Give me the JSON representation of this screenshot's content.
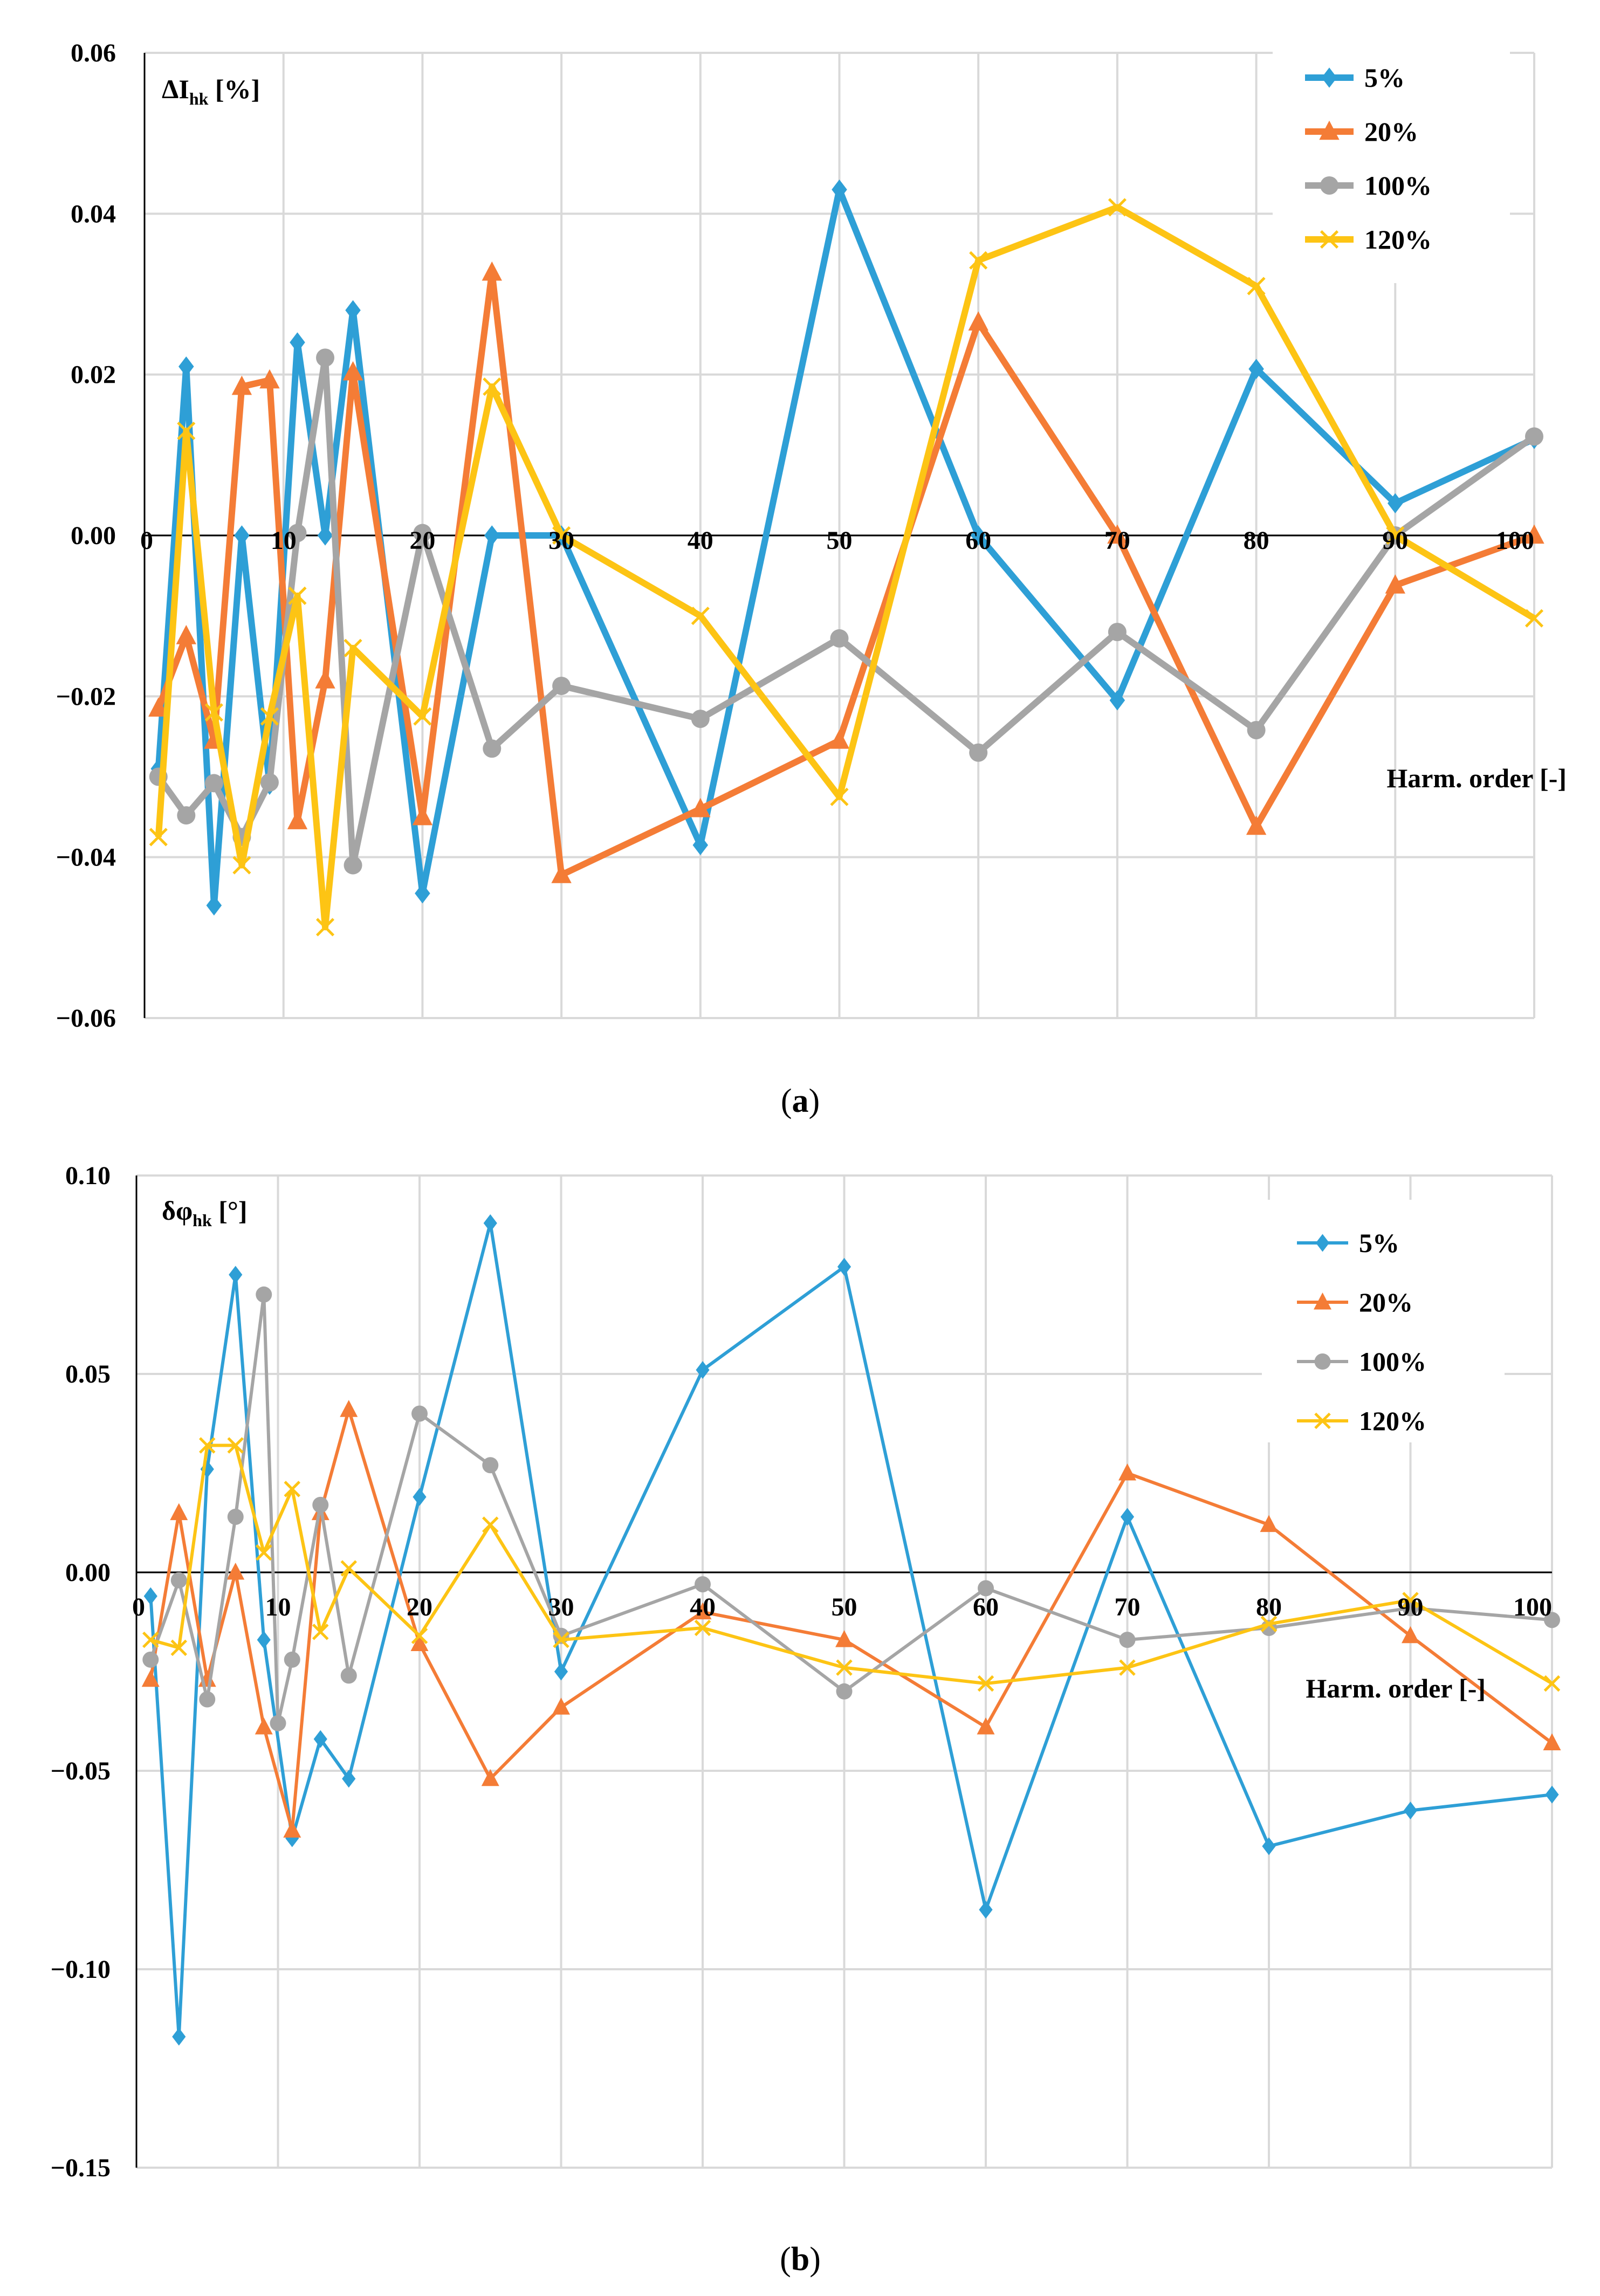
{
  "colors": {
    "5%": "#2e9fd6",
    "20%": "#f47c36",
    "100%": "#a5a5a5",
    "120%": "#fdc414",
    "grid": "#d9d9d9",
    "axis": "#000000"
  },
  "chart_data": [
    {
      "type": "line",
      "caption": {
        "open": "(",
        "letter": "a",
        "close": ")"
      },
      "ylabel": {
        "main": "ΔI",
        "sub": "hk",
        "unit": " [%]"
      },
      "xlabel": "Harm. order [-]",
      "xlim": [
        0,
        100
      ],
      "ylim": [
        -0.06,
        0.06
      ],
      "xticks": [
        "0",
        "10",
        "20",
        "30",
        "40",
        "50",
        "60",
        "70",
        "80",
        "90",
        "100"
      ],
      "yticks": [
        "0.06",
        "0.04",
        "0.02",
        "0.00",
        "−0.02",
        "−0.04",
        "−0.06"
      ],
      "line_style": "thick",
      "series": [
        {
          "name": "5%",
          "marker": "diamond",
          "x": [
            1,
            3,
            5,
            7,
            9,
            11,
            13,
            15,
            20,
            25,
            30,
            40,
            50,
            60,
            70,
            80,
            90,
            100
          ],
          "y": [
            -0.029,
            0.021,
            -0.046,
            0.0,
            -0.031,
            0.024,
            0.0,
            0.028,
            -0.0445,
            0.0,
            0.0,
            -0.0385,
            0.043,
            0.0,
            -0.0205,
            0.0207,
            0.004,
            0.012
          ]
        },
        {
          "name": "20%",
          "marker": "triangle",
          "x": [
            1,
            3,
            5,
            7,
            9,
            11,
            13,
            15,
            20,
            25,
            30,
            40,
            50,
            60,
            70,
            80,
            90,
            100
          ],
          "y": [
            -0.0215,
            -0.0125,
            -0.0255,
            0.0185,
            0.0193,
            -0.0355,
            -0.018,
            0.0203,
            -0.035,
            0.0327,
            -0.0422,
            -0.034,
            -0.0255,
            0.0265,
            0.0,
            -0.0362,
            -0.0062,
            0.0
          ]
        },
        {
          "name": "100%",
          "marker": "circle",
          "x": [
            1,
            3,
            5,
            7,
            9,
            11,
            13,
            15,
            20,
            25,
            30,
            40,
            50,
            60,
            70,
            80,
            90,
            100
          ],
          "y": [
            -0.03,
            -0.0348,
            -0.0308,
            -0.0375,
            -0.0307,
            0.0003,
            0.0221,
            -0.041,
            0.0003,
            -0.0265,
            -0.0187,
            -0.0228,
            -0.0128,
            -0.027,
            -0.012,
            -0.0242,
            0.0,
            0.0123
          ]
        },
        {
          "name": "120%",
          "marker": "x",
          "x": [
            1,
            3,
            5,
            7,
            9,
            11,
            13,
            15,
            20,
            25,
            30,
            40,
            50,
            60,
            70,
            80,
            90,
            100
          ],
          "y": [
            -0.0375,
            0.013,
            -0.022,
            -0.041,
            -0.0225,
            -0.0075,
            -0.0487,
            -0.014,
            -0.0225,
            0.0185,
            0.0,
            -0.01,
            -0.0325,
            0.0342,
            0.0408,
            0.031,
            0.0,
            -0.0103
          ]
        }
      ]
    },
    {
      "type": "line",
      "caption": {
        "open": "(",
        "letter": "b",
        "close": ")"
      },
      "ylabel": {
        "main": "δφ",
        "sub": "hk",
        "unit": " [°]"
      },
      "xlabel": "Harm. order [-]",
      "xlim": [
        0,
        100
      ],
      "ylim": [
        -0.15,
        0.1
      ],
      "xticks": [
        "0",
        "10",
        "20",
        "30",
        "40",
        "50",
        "60",
        "70",
        "80",
        "90",
        "100"
      ],
      "yticks": [
        "0.10",
        "0.05",
        "0.00",
        "−0.05",
        "−0.10",
        "−0.15"
      ],
      "line_style": "thin",
      "series": [
        {
          "name": "5%",
          "marker": "diamond",
          "x": [
            1,
            3,
            5,
            7,
            9,
            11,
            13,
            15,
            20,
            25,
            30,
            40,
            50,
            60,
            70,
            80,
            90,
            100
          ],
          "y": [
            -0.006,
            -0.117,
            0.026,
            0.075,
            -0.017,
            -0.067,
            -0.042,
            -0.052,
            0.019,
            0.088,
            -0.025,
            0.051,
            0.077,
            -0.085,
            0.014,
            -0.069,
            -0.06,
            -0.056
          ]
        },
        {
          "name": "20%",
          "marker": "triangle",
          "x": [
            1,
            3,
            5,
            7,
            9,
            11,
            13,
            15,
            20,
            25,
            30,
            40,
            50,
            60,
            70,
            80,
            90,
            100
          ],
          "y": [
            -0.027,
            0.015,
            -0.027,
            0.0,
            -0.039,
            -0.065,
            0.015,
            0.041,
            -0.018,
            -0.052,
            -0.034,
            -0.01,
            -0.017,
            -0.039,
            0.025,
            0.012,
            -0.016,
            -0.043
          ]
        },
        {
          "name": "100%",
          "marker": "circle",
          "x": [
            1,
            3,
            5,
            7,
            9,
            10,
            11,
            13,
            15,
            20,
            25,
            30,
            40,
            50,
            60,
            70,
            80,
            90,
            100
          ],
          "y": [
            -0.022,
            -0.002,
            -0.032,
            0.014,
            0.07,
            -0.038,
            -0.022,
            0.017,
            -0.026,
            0.04,
            0.027,
            -0.016,
            -0.003,
            -0.03,
            -0.004,
            -0.017,
            -0.014,
            -0.009,
            -0.012
          ]
        },
        {
          "name": "120%",
          "marker": "x",
          "x": [
            1,
            3,
            5,
            7,
            9,
            11,
            13,
            15,
            20,
            25,
            30,
            40,
            50,
            60,
            70,
            80,
            90,
            100
          ],
          "y": [
            -0.017,
            -0.019,
            0.032,
            0.032,
            0.005,
            0.021,
            -0.015,
            0.001,
            -0.016,
            0.012,
            -0.017,
            -0.014,
            -0.024,
            -0.028,
            -0.024,
            -0.013,
            -0.007,
            -0.028
          ]
        }
      ]
    }
  ]
}
